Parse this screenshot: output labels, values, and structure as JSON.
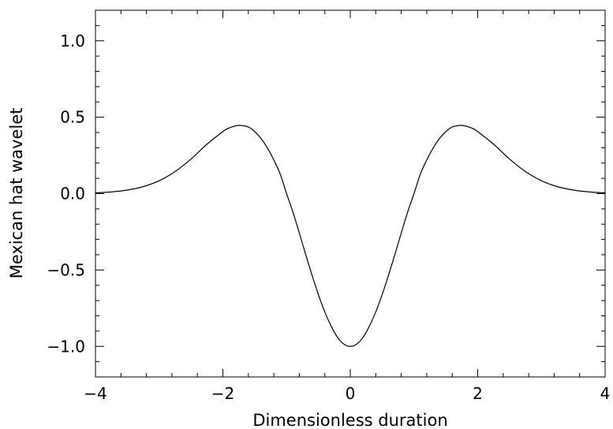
{
  "chart_data": {
    "type": "line",
    "title": "",
    "xlabel": "Dimensionless duration",
    "ylabel": "Mexican hat wavelet",
    "xlim": [
      -4,
      4
    ],
    "ylim": [
      -1.2,
      1.2
    ],
    "grid": false,
    "x_major_ticks": [
      -4,
      -2,
      0,
      2,
      4
    ],
    "x_tick_labels": [
      "−4",
      "−2",
      "0",
      "2",
      "4"
    ],
    "x_minor_step": 0.4,
    "y_major_ticks": [
      -1.0,
      -0.5,
      0.0,
      0.5,
      1.0
    ],
    "y_tick_labels": [
      "−1.0",
      "−0.5",
      "0.0",
      "0.5",
      "1.0"
    ],
    "y_minor_step": 0.1,
    "series": [
      {
        "x": [
          -4.0,
          -3.75,
          -3.5,
          -3.25,
          -3.0,
          -2.75,
          -2.5,
          -2.25,
          -2.0,
          -1.9,
          -1.8,
          -1.732,
          -1.6,
          -1.5,
          -1.4,
          -1.3,
          -1.2,
          -1.1,
          -1.0,
          -0.9,
          -0.8,
          -0.7,
          -0.6,
          -0.5,
          -0.4,
          -0.3,
          -0.2,
          -0.1,
          0.0,
          0.1,
          0.2,
          0.3,
          0.4,
          0.5,
          0.6,
          0.7,
          0.8,
          0.9,
          1.0,
          1.1,
          1.2,
          1.3,
          1.4,
          1.5,
          1.6,
          1.732,
          1.8,
          1.9,
          2.0,
          2.25,
          2.5,
          2.75,
          3.0,
          3.25,
          3.5,
          3.75,
          4.0
        ],
        "y": [
          0.005,
          0.0109,
          0.0231,
          0.0458,
          0.0844,
          0.1444,
          0.2262,
          0.3233,
          0.406,
          0.4299,
          0.4433,
          0.4463,
          0.4361,
          0.4058,
          0.3599,
          0.2979,
          0.2199,
          0.1282,
          0.0,
          -0.1214,
          -0.258,
          -0.399,
          -0.5347,
          -0.6619,
          -0.7745,
          -0.8675,
          -0.941,
          -0.9851,
          -1.0,
          -0.9851,
          -0.941,
          -0.8675,
          -0.7745,
          -0.6619,
          -0.5347,
          -0.399,
          -0.258,
          -0.1214,
          0.0,
          0.1282,
          0.2199,
          0.2979,
          0.3599,
          0.4058,
          0.4361,
          0.4463,
          0.4433,
          0.4299,
          0.406,
          0.3233,
          0.2262,
          0.1444,
          0.0844,
          0.0458,
          0.0231,
          0.0109,
          0.005
        ]
      }
    ]
  }
}
